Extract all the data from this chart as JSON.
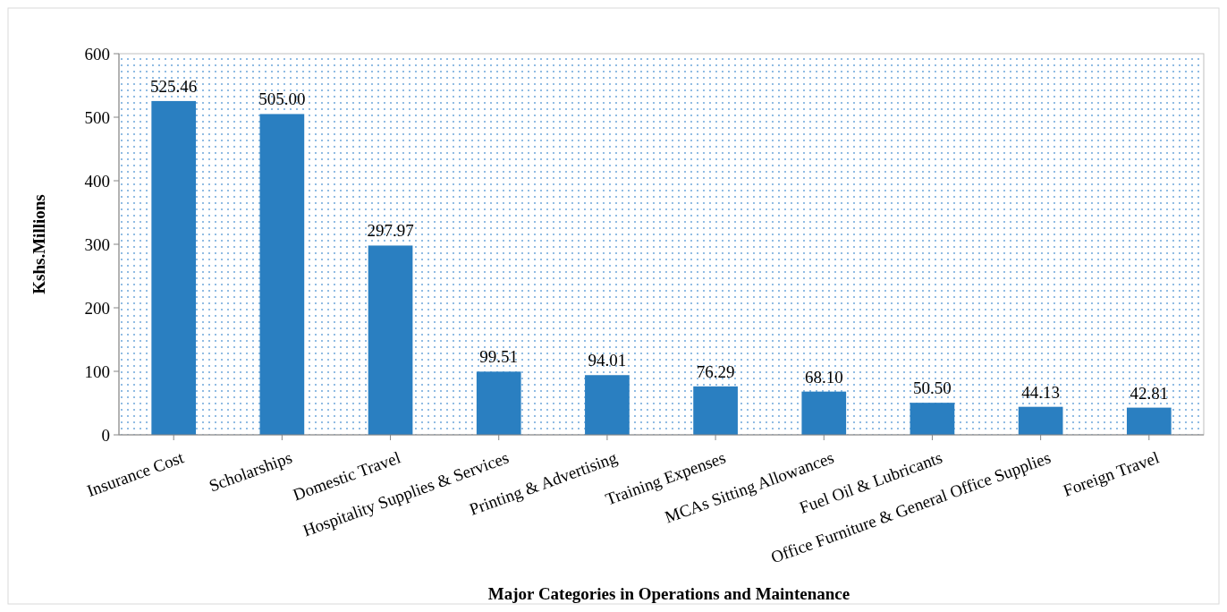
{
  "chart_data": {
    "type": "bar",
    "xlabel": "Major Categories in Operations and Maintenance",
    "ylabel": "Kshs.Millions",
    "categories": [
      "Insurance Cost",
      "Scholarships",
      "Domestic Travel",
      "Hospitality Supplies & Services",
      "Printing & Advertising",
      "Training Expenses",
      "MCAs Sitting Allowances",
      "Fuel Oil & Lubricants",
      "Office Furniture & General Office Supplies",
      "Foreign Travel"
    ],
    "values": [
      525.46,
      505.0,
      297.97,
      99.51,
      94.01,
      76.29,
      68.1,
      50.5,
      44.13,
      42.81
    ],
    "value_labels": [
      "525.46",
      "505.00",
      "297.97",
      "99.51",
      "94.01",
      "76.29",
      "68.10",
      "50.50",
      "44.13",
      "42.81"
    ],
    "color": "#2a7fc1",
    "ylim": [
      0,
      600
    ],
    "yticks": [
      0,
      100,
      200,
      300,
      400,
      500,
      600
    ],
    "grid": false
  }
}
